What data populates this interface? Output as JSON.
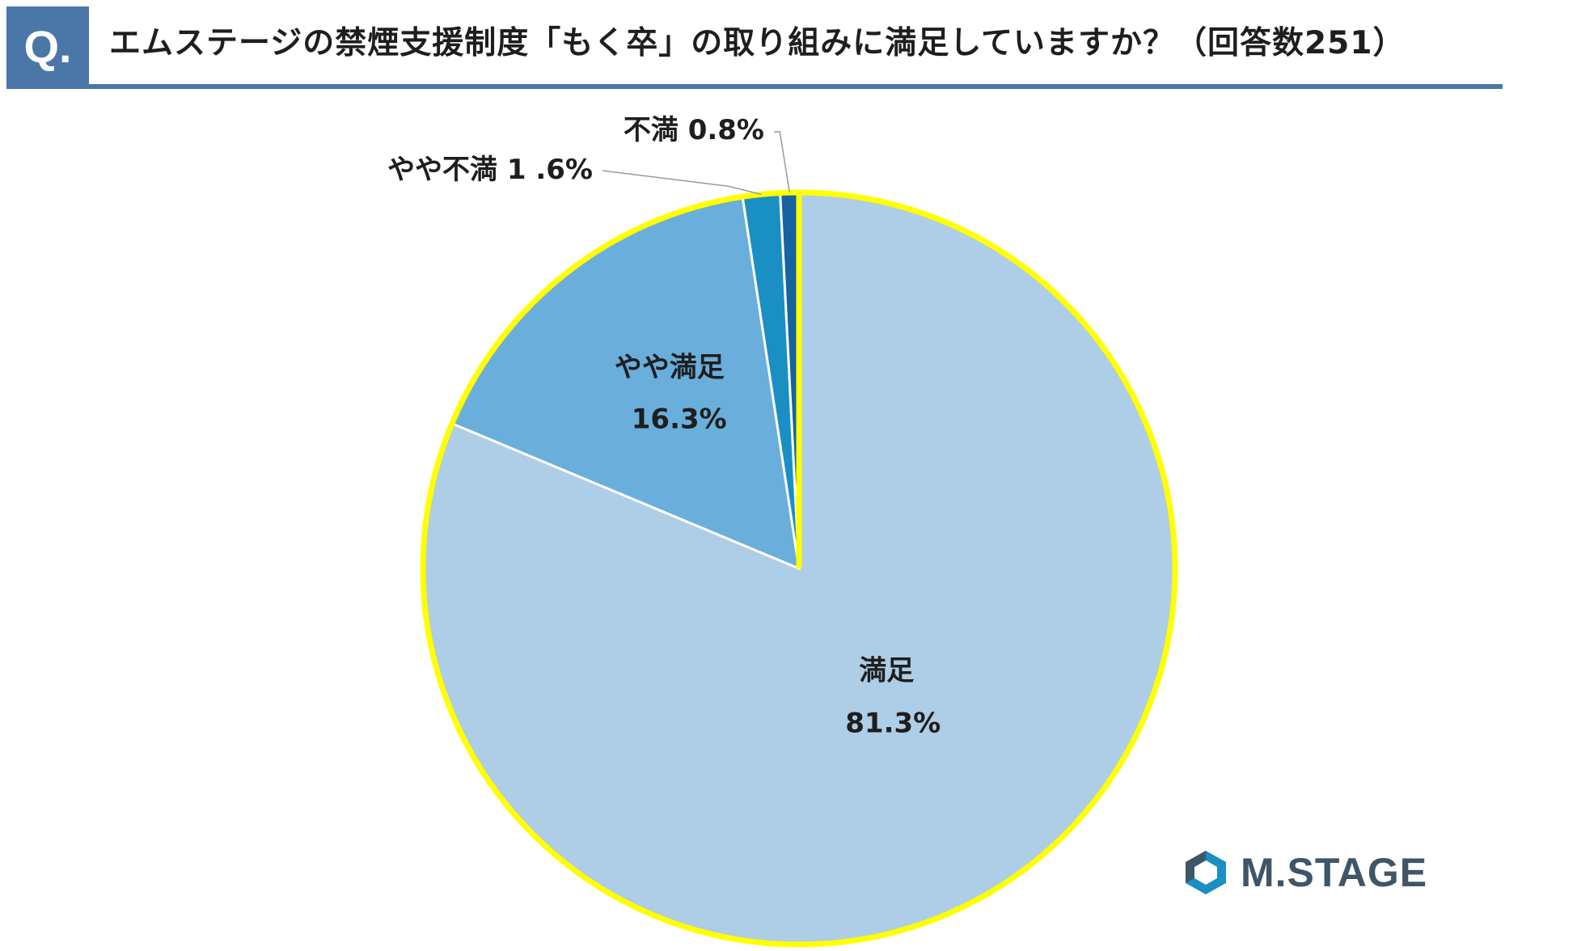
{
  "header": {
    "badge": "Q.",
    "title": "エムステージの禁煙支援制度「もく卒」の取り組みに満足していますか？（回答数251）"
  },
  "chart_data": {
    "type": "pie",
    "title": "エムステージの禁煙支援制度「もく卒」の取り組みに満足していますか？（回答数251）",
    "slices": [
      {
        "name": "満足",
        "value": 81.3,
        "label": "81.3%",
        "color": "#aecde6"
      },
      {
        "name": "やや満足",
        "value": 16.3,
        "label": "16.3%",
        "color": "#6aaedc"
      },
      {
        "name": "やや不満",
        "value": 1.6,
        "label": "やや不満 1 .6%",
        "color": "#1a8fc4"
      },
      {
        "name": "不満",
        "value": 0.8,
        "label": "不満 0.8%",
        "color": "#1563a0"
      }
    ],
    "start_angle": "12 o'clock, clockwise",
    "outline_color": "#ffff00"
  },
  "logo": {
    "text": "M.STAGE",
    "icon": "m-stage-hexagon-logo",
    "color": "#3f5568",
    "accent": "#1a8fc4"
  }
}
